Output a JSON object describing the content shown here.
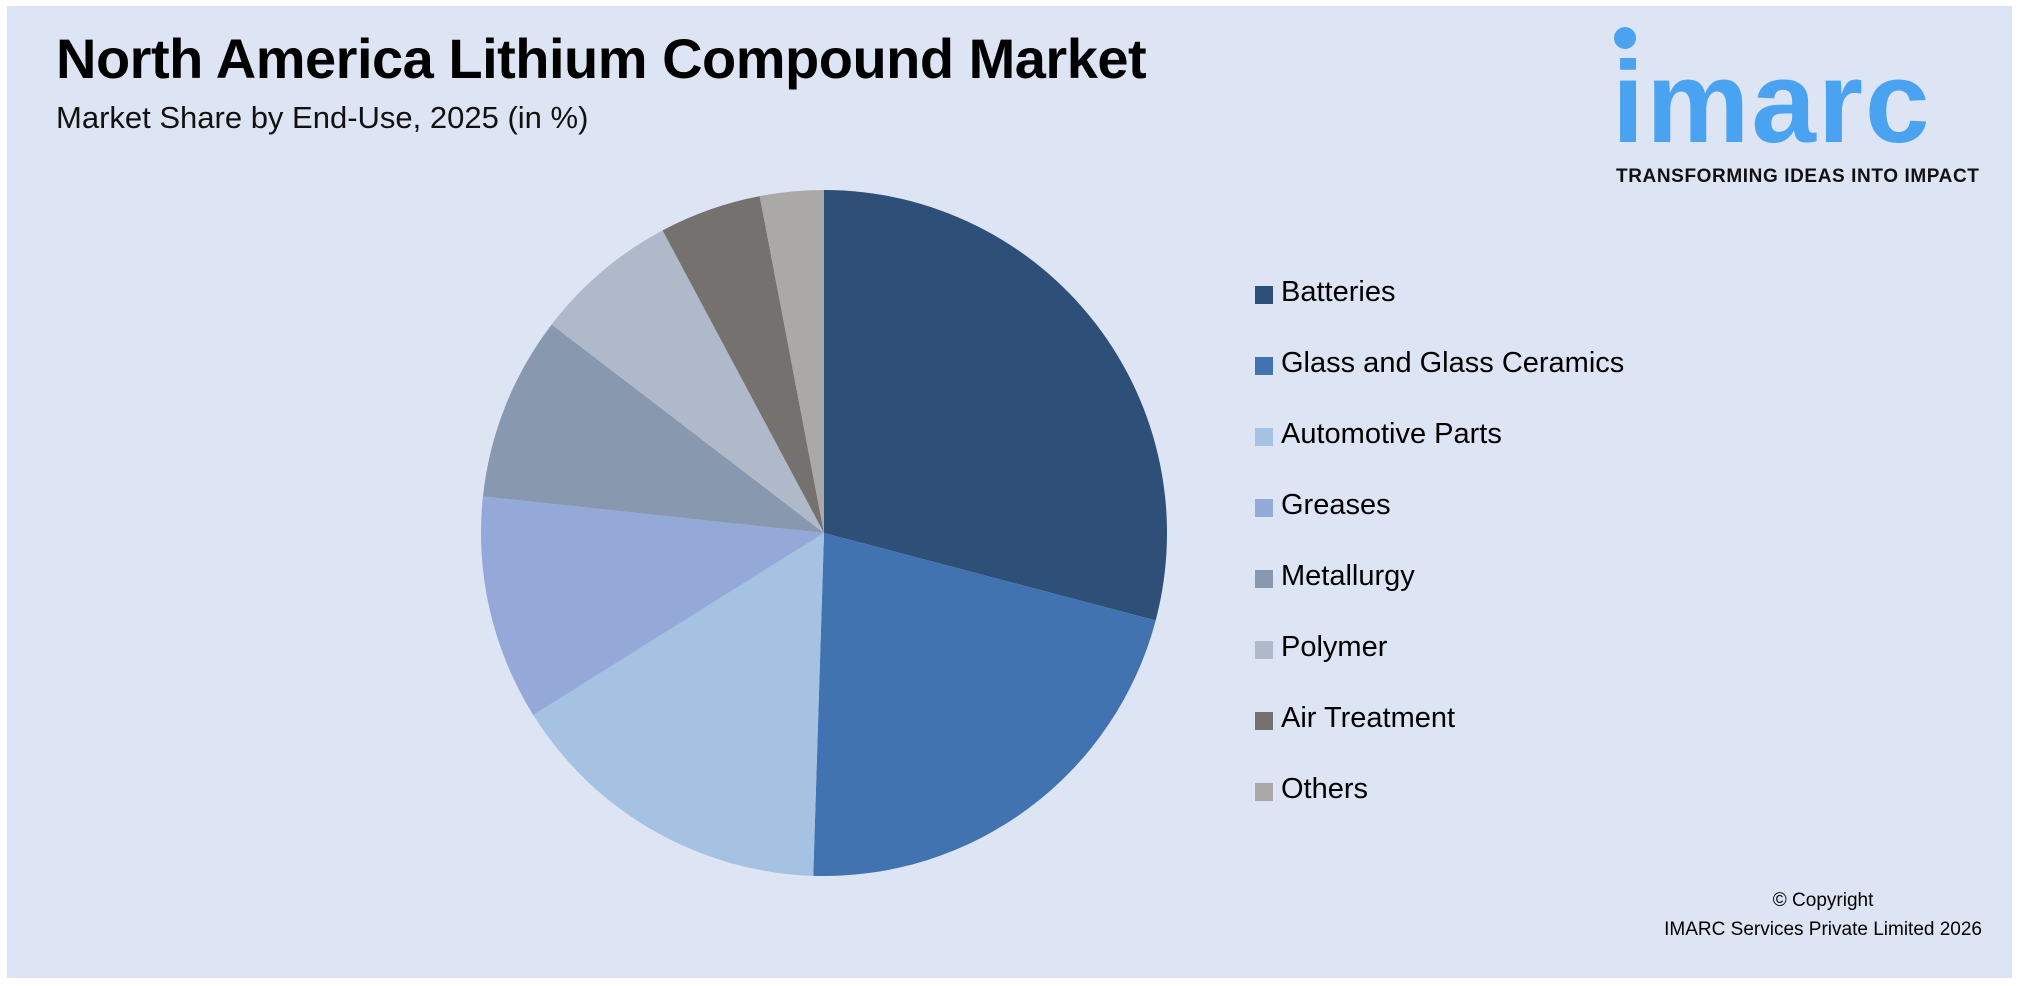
{
  "header": {
    "title": "North America Lithium Compound Market",
    "subtitle": "Market Share by End-Use, 2025 (in %)"
  },
  "logo": {
    "wordmark": "imarc",
    "tagline": "TRANSFORMING IDEAS INTO IMPACT",
    "color": "#4aa3f0"
  },
  "footer": {
    "line1": "© Copyright",
    "line2": "IMARC Services Private Limited 2026"
  },
  "colors": {
    "background": "#dde4f3",
    "frame": "#ffffff"
  },
  "legend": {
    "items": [
      {
        "label": "Batteries",
        "color": "#2d4f78"
      },
      {
        "label": "Glass and Glass Ceramics",
        "color": "#4173b0"
      },
      {
        "label": "Automotive Parts",
        "color": "#a6c2e2"
      },
      {
        "label": "Greases",
        "color": "#94a9d8"
      },
      {
        "label": "Metallurgy",
        "color": "#8898af"
      },
      {
        "label": "Polymer",
        "color": "#afb9c9"
      },
      {
        "label": "Air Treatment",
        "color": "#75716f"
      },
      {
        "label": "Others",
        "color": "#aaa9a8"
      }
    ]
  },
  "chart_data": {
    "type": "pie",
    "title": "North America Lithium Compound Market",
    "subtitle": "Market Share by End-Use, 2025 (in %)",
    "categories": [
      "Batteries",
      "Glass and Glass Ceramics",
      "Automotive Parts",
      "Greases",
      "Metallurgy",
      "Polymer",
      "Air Treatment",
      "Others"
    ],
    "values": [
      29.1,
      21.4,
      15.6,
      10.6,
      8.7,
      6.8,
      4.8,
      3.0
    ],
    "colors": [
      "#2d4f78",
      "#4173b0",
      "#a6c2e2",
      "#94a9d8",
      "#8898af",
      "#afb9c9",
      "#75716f",
      "#aaa9a8"
    ],
    "start_angle_deg": 0,
    "direction": "clockwise",
    "data_labels": false,
    "legend_position": "right",
    "center": [
      824,
      533
    ],
    "radius": 343
  }
}
